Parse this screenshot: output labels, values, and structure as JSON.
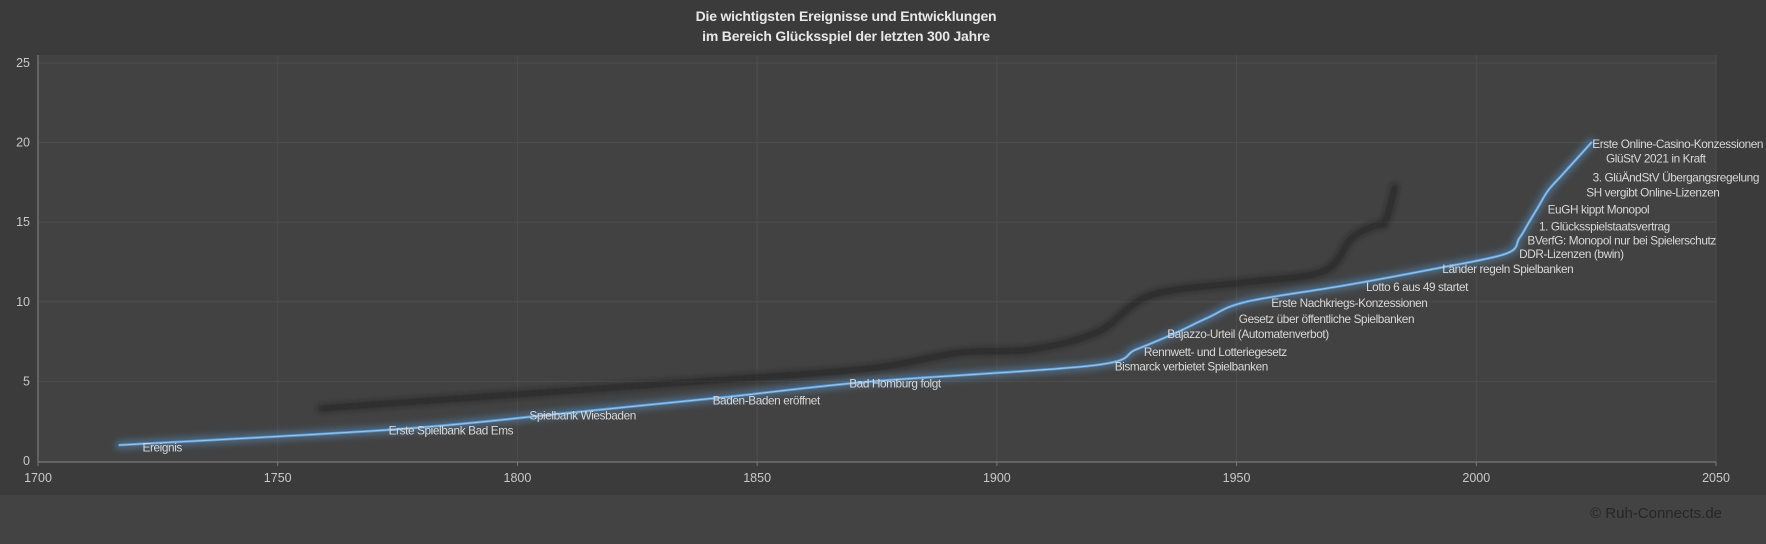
{
  "title": {
    "line1": "Die wichtigsten Ereignisse und Entwicklungen",
    "line2": "im Bereich Glücksspiel der letzten 300 Jahre"
  },
  "footer": {
    "copyright": "© Ruh-Connects.de"
  },
  "colors": {
    "background": "#3b3b3b",
    "plot_bg": "#424242",
    "footer_bg": "#434343",
    "grid": "#4e4e4e",
    "axis": "#7a7a7a",
    "line": "#5b9bd5",
    "line_glow": "#5b9bd5",
    "line_highlight": "#aecfee",
    "shadow_line": "#161616",
    "event_label": "#d8d8d8",
    "tick_label": "#c9c9c9",
    "title_text": "#e8e8e8",
    "copyright_text": "#262626"
  },
  "chart_data": {
    "type": "line",
    "title": "Die wichtigsten Ereignisse und Entwicklungen im Bereich Glücksspiel der letzten 300 Jahre",
    "xlabel": "",
    "ylabel": "",
    "grid": true,
    "legend": "none",
    "x_axis": {
      "min": 1700,
      "max": 2050,
      "tick_labels": [
        "1700",
        "1750",
        "1800",
        "1850",
        "1900",
        "1950",
        "2000",
        "2050"
      ],
      "ticks": [
        1700,
        1750,
        1800,
        1850,
        1900,
        1950,
        2000,
        2050
      ]
    },
    "y_axis": {
      "min": 0,
      "max": 25,
      "tick_labels": [
        "0",
        "5",
        "10",
        "15",
        "20",
        "25"
      ],
      "ticks": [
        0,
        5,
        10,
        15,
        20,
        25
      ]
    },
    "series": [
      {
        "name": "Ereignis",
        "role": "main",
        "color": "#5b9bd5",
        "points": [
          {
            "year": 1717,
            "value": 1,
            "label": "Ereignis",
            "label_dx": 23,
            "label_dy": 2
          },
          {
            "year": 1775,
            "value": 2,
            "label": "Erste Spielbank Bad Ems",
            "label_dx": -9,
            "label_dy": 1
          },
          {
            "year": 1810,
            "value": 3,
            "label": "Spielbank Wiesbaden",
            "label_dx": -36,
            "label_dy": 2
          },
          {
            "year": 1843,
            "value": 4,
            "label": "Baden-Baden eröffnet",
            "label_dx": -11,
            "label_dy": 3
          },
          {
            "year": 1874,
            "value": 5,
            "label": "Bad Homburg folgt",
            "label_dx": -23,
            "label_dy": 2
          },
          {
            "year": 1920,
            "value": 6,
            "label": "Bismarck verbietet Spielbanken",
            "label_dx": 22,
            "label_dy": 1
          },
          {
            "year": 1929,
            "value": 7,
            "label": "Rennwett- und Lotteriegesetz",
            "label_dx": 8,
            "label_dy": 2
          },
          {
            "year": 1937,
            "value": 8,
            "label": "Bajazzo-Urteil (Automatenverbot)",
            "label_dx": -7,
            "label_dy": 0
          },
          {
            "year": 1944,
            "value": 9,
            "label": "Gesetz über öffentliche Spielbanken",
            "label_dx": 31,
            "label_dy": 1
          },
          {
            "year": 1952,
            "value": 10,
            "label": "Erste Nachkriegs-Konzessionen",
            "label_dx": 25,
            "label_dy": 1
          },
          {
            "year": 1972,
            "value": 11,
            "label": "Lotto 6 aus 49 startet",
            "label_dx": 24,
            "label_dy": 1
          },
          {
            "year": 1990,
            "value": 12,
            "label": "Länder regeln Spielbanken",
            "label_dx": 14,
            "label_dy": -1
          },
          {
            "year": 2006,
            "value": 13,
            "label": "DDR-Lizenzen (bwin)",
            "label_dx": 14,
            "label_dy": 0
          },
          {
            "year": 2009,
            "value": 14,
            "label": "BVerfG: Monopol nur bei Spielerschutz",
            "label_dx": 8,
            "label_dy": 2
          },
          {
            "year": 2011,
            "value": 15,
            "label": "1. Glücksspielstaatsvertrag",
            "label_dx": 10,
            "label_dy": 4
          },
          {
            "year": 2013,
            "value": 16,
            "label": "EuGH kippt Monopol",
            "label_dx": 9,
            "label_dy": 3
          },
          {
            "year": 2015,
            "value": 17,
            "label": "SH vergibt Online-Lizenzen",
            "label_dx": 38,
            "label_dy": 2
          },
          {
            "year": 2018,
            "value": 18,
            "label": "3. GlüÄndStV Übergangsregelung",
            "label_dx": 30,
            "label_dy": 3
          },
          {
            "year": 2021,
            "value": 19,
            "label": "GlüStV 2021 in Kraft",
            "label_dx": 29,
            "label_dy": 0
          },
          {
            "year": 2024,
            "value": 20,
            "label": "Erste Online-Casino-Konzessionen",
            "label_dx": 1,
            "label_dy": 1
          }
        ]
      },
      {
        "name": "shadow-echo",
        "role": "decorative-shadow",
        "color": "#161616",
        "points": [
          {
            "year": 1759,
            "value": 3.3
          },
          {
            "year": 1796,
            "value": 4.1
          },
          {
            "year": 1838,
            "value": 5.0
          },
          {
            "year": 1873,
            "value": 5.8
          },
          {
            "year": 1892,
            "value": 6.8
          },
          {
            "year": 1907,
            "value": 7.0
          },
          {
            "year": 1921,
            "value": 8.1
          },
          {
            "year": 1932,
            "value": 10.4
          },
          {
            "year": 1951,
            "value": 11.2
          },
          {
            "year": 1968,
            "value": 11.9
          },
          {
            "year": 1974,
            "value": 14.0
          },
          {
            "year": 1979,
            "value": 14.8
          },
          {
            "year": 1981,
            "value": 15.0
          },
          {
            "year": 1983,
            "value": 17.2
          }
        ]
      }
    ]
  }
}
